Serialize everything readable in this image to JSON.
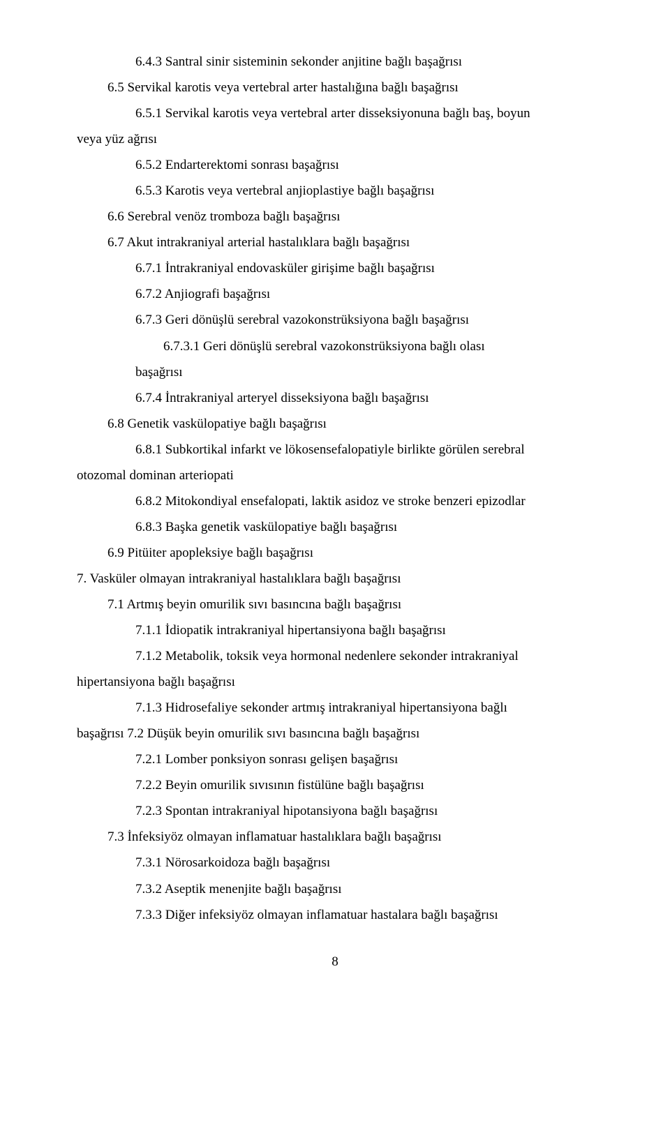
{
  "lines": {
    "l1": "6.4.3 Santral sinir sisteminin sekonder anjitine bağlı başağrısı",
    "l2": "6.5 Servikal karotis veya vertebral arter hastalığına bağlı başağrısı",
    "l3": "6.5.1 Servikal karotis veya vertebral arter disseksiyonuna bağlı baş, boyun",
    "l3b": "veya yüz ağrısı",
    "l4": "6.5.2 Endarterektomi sonrası başağrısı",
    "l5": "6.5.3 Karotis veya vertebral anjioplastiye bağlı başağrısı",
    "l6": "6.6 Serebral venöz tromboza bağlı başağrısı",
    "l7": "6.7 Akut intrakraniyal arterial hastalıklara bağlı başağrısı",
    "l8": "6.7.1 İntrakraniyal endovasküler girişime bağlı başağrısı",
    "l9": "6.7.2 Anjiografi başağrısı",
    "l10": "6.7.3 Geri dönüşlü serebral vazokonstrüksiyona bağlı başağrısı",
    "l11": "6.7.3.1 Geri dönüşlü serebral vazokonstrüksiyona bağlı olası",
    "l11b": "başağrısı",
    "l12": "6.7.4 İntrakraniyal arteryel disseksiyona bağlı başağrısı",
    "l13": "6.8 Genetik vaskülopatiye bağlı başağrısı",
    "l14": "6.8.1 Subkortikal infarkt ve lökosensefalopatiyle birlikte görülen serebral",
    "l14b": "otozomal dominan arteriopati",
    "l15": "6.8.2 Mitokondiyal ensefalopati, laktik asidoz ve stroke benzeri epizodlar",
    "l16": "6.8.3 Başka genetik vaskülopatiye bağlı başağrısı",
    "l17": "6.9 Pitüiter apopleksiye bağlı başağrısı",
    "l18": "7. Vasküler olmayan intrakraniyal hastalıklara bağlı başağrısı",
    "l19": "7.1 Artmış beyin omurilik sıvı basıncına bağlı başağrısı",
    "l20": "7.1.1 İdiopatik intrakraniyal hipertansiyona bağlı başağrısı",
    "l21": "7.1.2 Metabolik, toksik veya hormonal nedenlere sekonder intrakraniyal",
    "l21b": "hipertansiyona bağlı başağrısı",
    "l22": "7.1.3 Hidrosefaliye sekonder artmış intrakraniyal hipertansiyona bağlı",
    "l22b": "başağrısı  7.2 Düşük beyin omurilik sıvı basıncına bağlı başağrısı",
    "l23": "7.2.1 Lomber ponksiyon sonrası gelişen başağrısı",
    "l24": "7.2.2 Beyin omurilik sıvısının fistülüne bağlı başağrısı",
    "l25": "7.2.3 Spontan intrakraniyal hipotansiyona bağlı başağrısı",
    "l26": "7.3 İnfeksiyöz olmayan inflamatuar hastalıklara bağlı başağrısı",
    "l27": "7.3.1 Nörosarkoidoza bağlı başağrısı",
    "l28": "7.3.2 Aseptik menenjite bağlı başağrısı",
    "l29": "7.3.3 Diğer infeksiyöz olmayan inflamatuar hastalara bağlı başağrısı"
  },
  "page_number": "8",
  "colors": {
    "text": "#000000",
    "background": "#ffffff"
  },
  "typography": {
    "font_family": "Times New Roman",
    "font_size_pt": 14,
    "line_height": 1.95
  }
}
